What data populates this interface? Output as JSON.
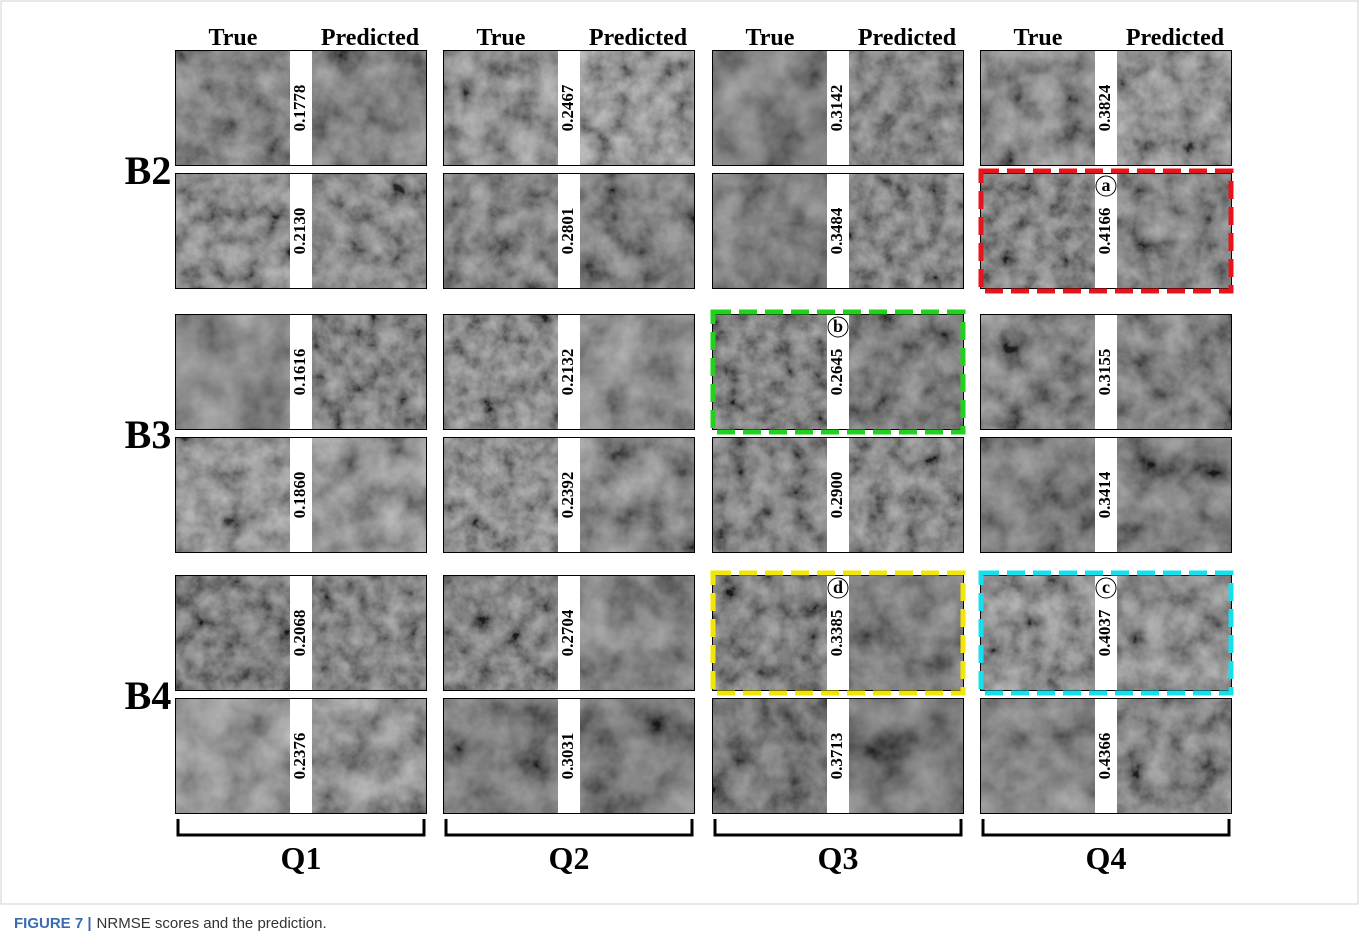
{
  "header": {
    "columns": [
      "True",
      "Predicted"
    ]
  },
  "quarters": [
    "Q1",
    "Q2",
    "Q3",
    "Q4"
  ],
  "bands": [
    {
      "name": "B2",
      "rows": [
        [
          {
            "score": "0.1778"
          },
          {
            "score": "0.2467"
          },
          {
            "score": "0.3142"
          },
          {
            "score": "0.3824"
          }
        ],
        [
          {
            "score": "0.2130"
          },
          {
            "score": "0.2801"
          },
          {
            "score": "0.3484"
          },
          {
            "score": "0.4166",
            "highlight": {
              "label": "a",
              "color": "#e8141b"
            }
          }
        ]
      ]
    },
    {
      "name": "B3",
      "rows": [
        [
          {
            "score": "0.1616"
          },
          {
            "score": "0.2132"
          },
          {
            "score": "0.2645",
            "highlight": {
              "label": "b",
              "color": "#22d11e"
            }
          },
          {
            "score": "0.3155"
          }
        ],
        [
          {
            "score": "0.1860"
          },
          {
            "score": "0.2392"
          },
          {
            "score": "0.2900"
          },
          {
            "score": "0.3414"
          }
        ]
      ]
    },
    {
      "name": "B4",
      "rows": [
        [
          {
            "score": "0.2068"
          },
          {
            "score": "0.2704"
          },
          {
            "score": "0.3385",
            "highlight": {
              "label": "d",
              "color": "#f2e607"
            }
          },
          {
            "score": "0.4037",
            "highlight": {
              "label": "c",
              "color": "#17e0ee"
            }
          }
        ],
        [
          {
            "score": "0.2376"
          },
          {
            "score": "0.3031"
          },
          {
            "score": "0.3713"
          },
          {
            "score": "0.4366"
          }
        ]
      ]
    }
  ],
  "caption": {
    "label": "FIGURE 7 |",
    "text": "NRMSE scores and the prediction."
  }
}
